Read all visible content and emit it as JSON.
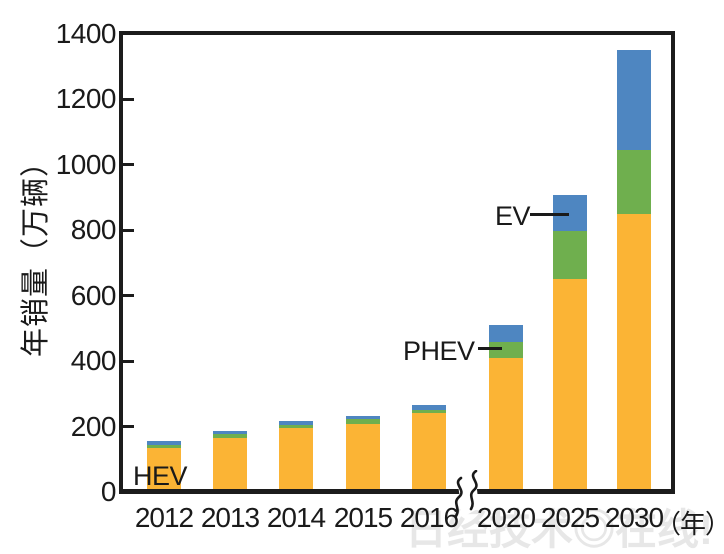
{
  "watermark": "日经技术◎在线!",
  "chart_data": {
    "type": "bar",
    "stacked": true,
    "title": "",
    "ylabel": "年销量（万辆）",
    "x_unit": "（年）",
    "ylim": [
      0,
      1400
    ],
    "yticks": [
      0,
      200,
      400,
      600,
      800,
      1000,
      1200,
      1400
    ],
    "grid": false,
    "legend_position": "inline-annotations",
    "categories": [
      "2012",
      "2013",
      "2014",
      "2015",
      "2016",
      "2020",
      "2025",
      "2030"
    ],
    "axis_break_between": [
      "2016",
      "2020"
    ],
    "series": [
      {
        "name": "HEV",
        "color": "#FBB435",
        "values": [
          135,
          165,
          195,
          207,
          240,
          410,
          650,
          850
        ]
      },
      {
        "name": "PHEV",
        "color": "#6FAF4E",
        "values": [
          10,
          12,
          10,
          15,
          10,
          50,
          147,
          195
        ]
      },
      {
        "name": "EV",
        "color": "#4E86C1",
        "values": [
          10,
          8,
          12,
          10,
          16,
          52,
          110,
          307
        ]
      }
    ],
    "annotations": [
      {
        "label": "HEV",
        "series": "HEV",
        "category": "2012"
      },
      {
        "label": "PHEV",
        "series": "PHEV",
        "category": "2020"
      },
      {
        "label": "EV",
        "series": "EV",
        "category": "2025"
      }
    ]
  }
}
